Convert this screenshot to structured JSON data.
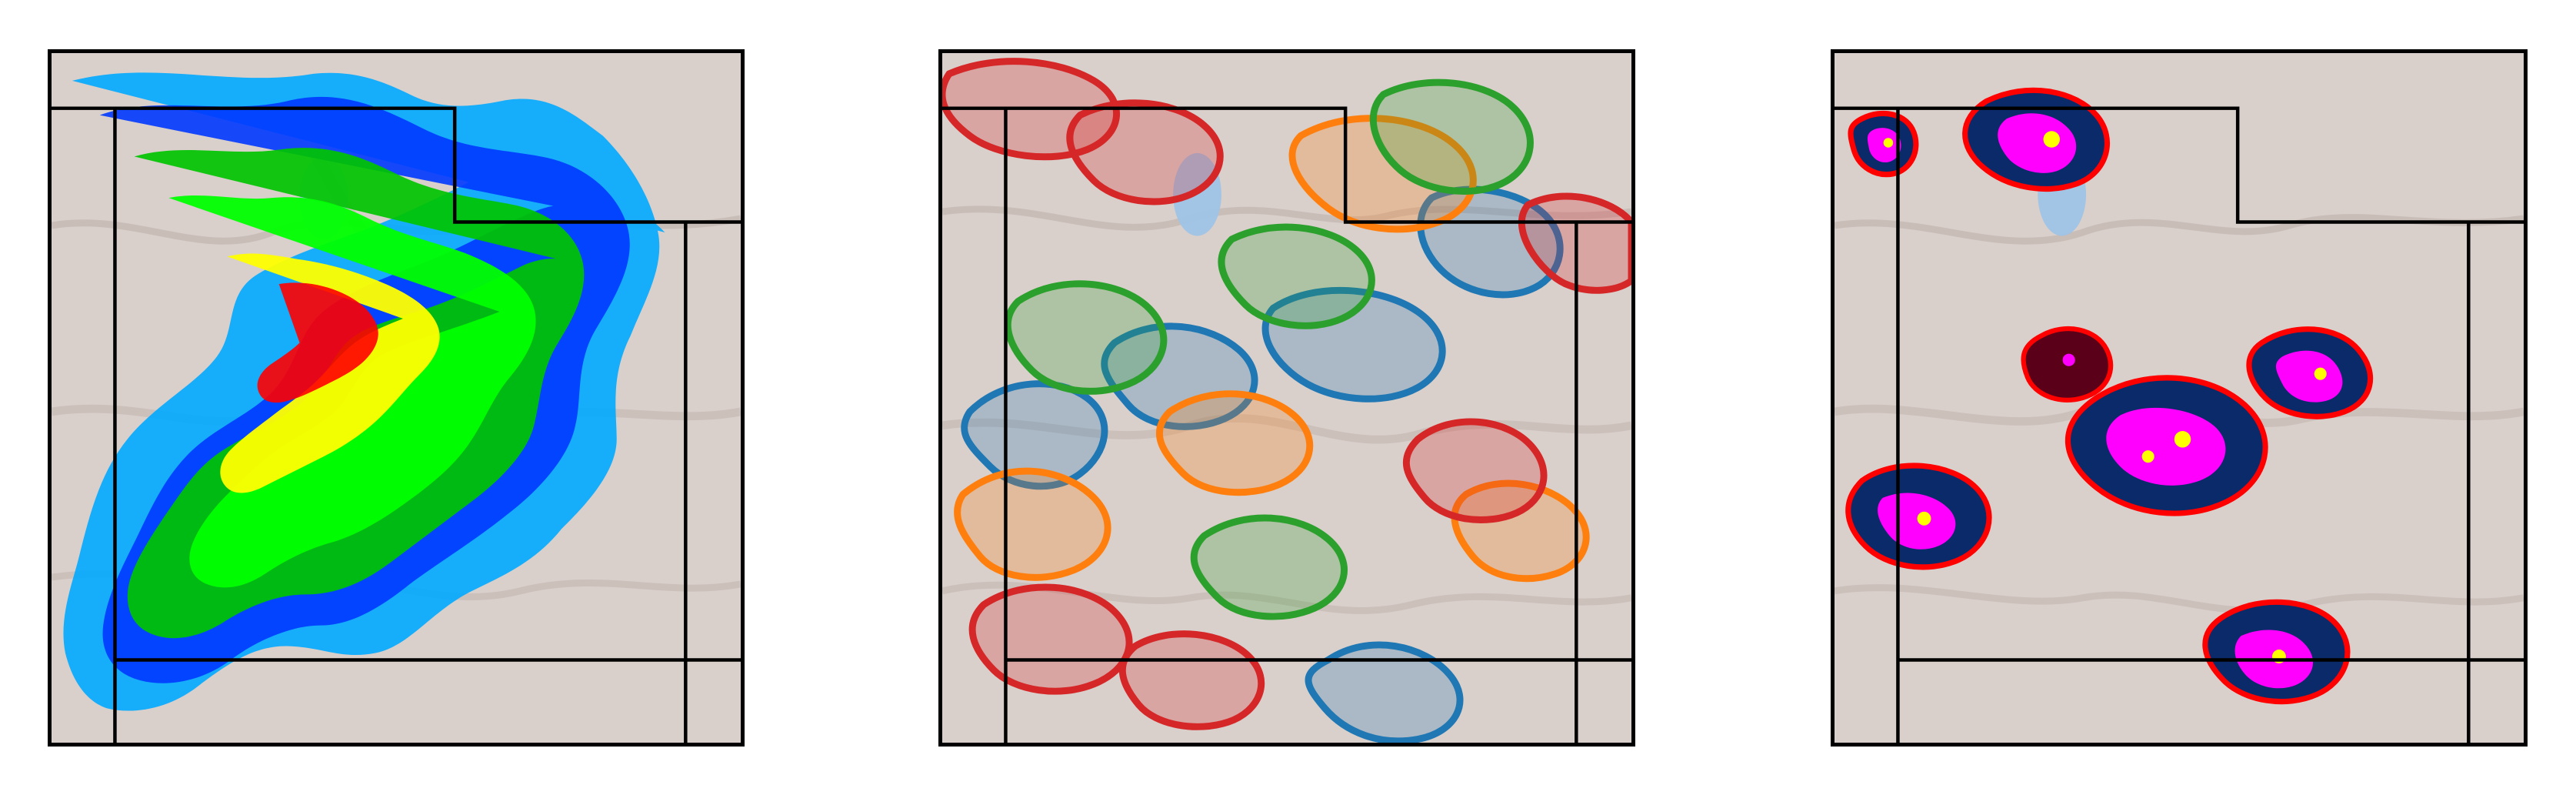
{
  "figure": {
    "panels": [
      {
        "id": "panel-1",
        "kind": "filled-contour field (precipitation-style)"
      },
      {
        "id": "panel-2",
        "kind": "multi-member contour overlays"
      },
      {
        "id": "panel-3",
        "kind": "object/cell mask overlays"
      }
    ]
  },
  "colors": {
    "background": "#ffffff",
    "terrain_base": "#d9cfcb",
    "terrain_shadow": "#b9aca7",
    "lake": "#9fc3e6",
    "frame": "#000000",
    "panel1_levels": [
      "#00a8ff",
      "#0038ff",
      "#00c400",
      "#00ff00",
      "#ffff00",
      "#ff0000"
    ],
    "panel2_members": [
      "#1f77b4",
      "#ff7f0e",
      "#2ca02c",
      "#d62728"
    ],
    "panel3": {
      "outline": "#ff0000",
      "body": "#0a2a6a",
      "core": "#ff00ff",
      "peak": "#ffff00",
      "dark": "#5a0018"
    }
  }
}
